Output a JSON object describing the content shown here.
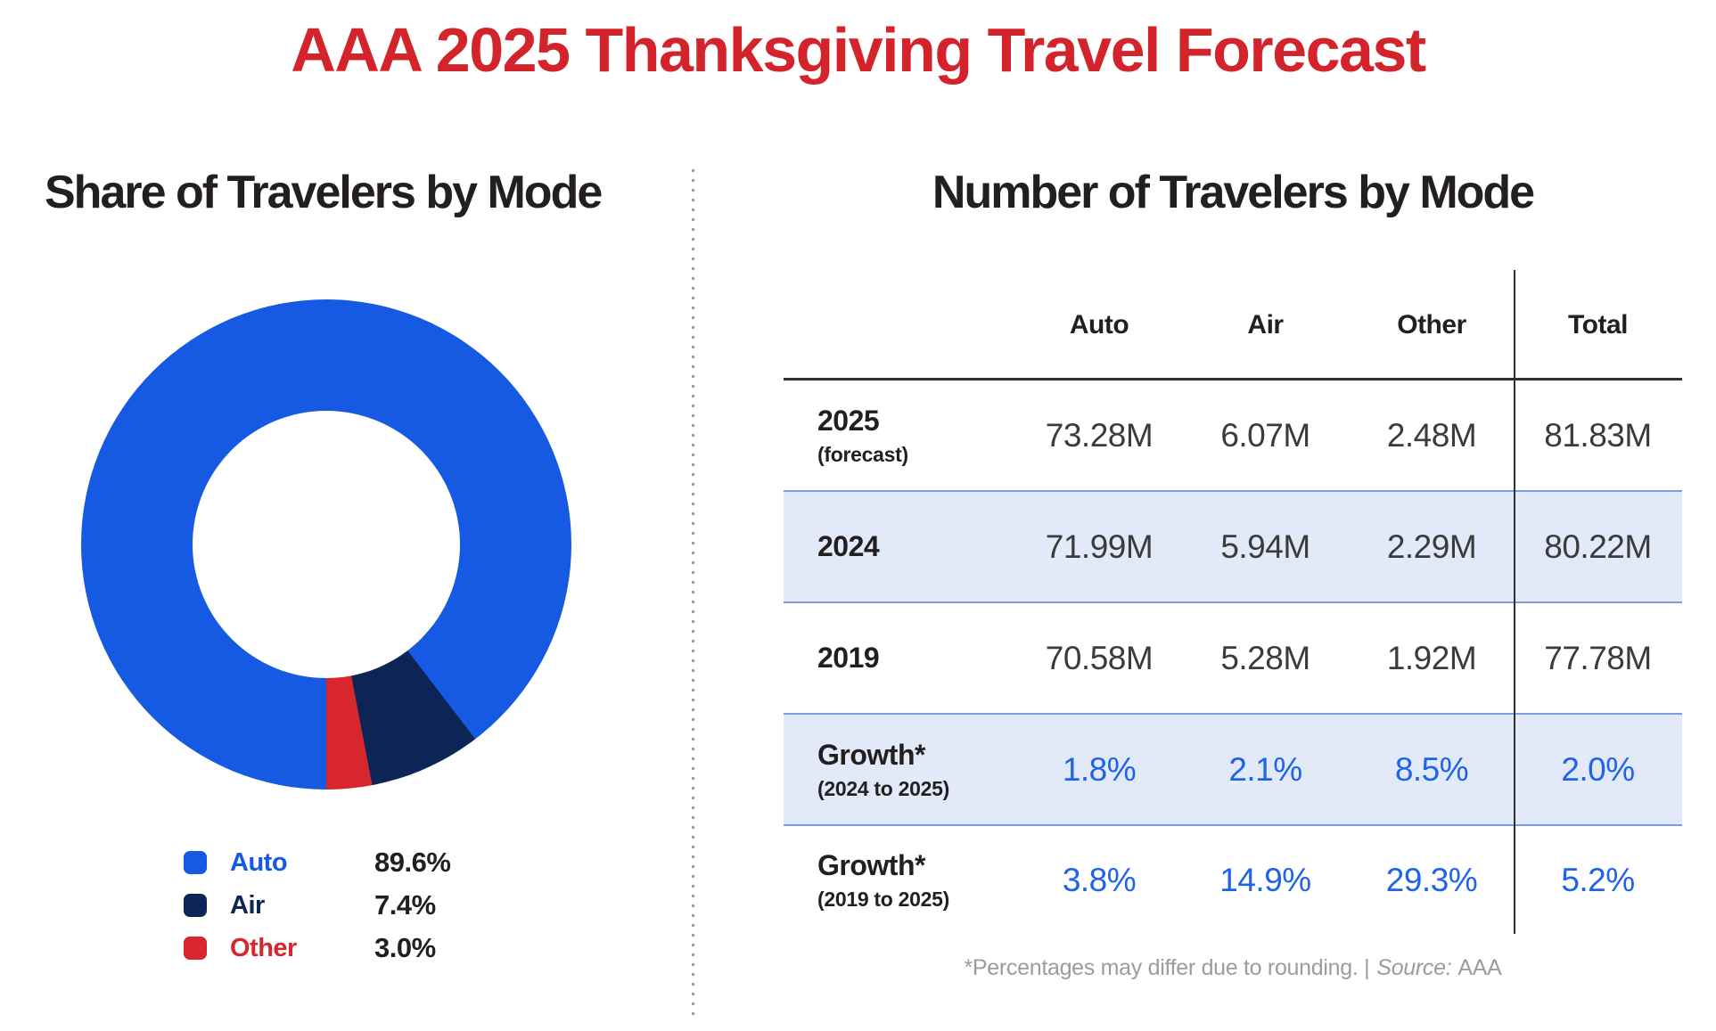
{
  "title": "AAA 2025 Thanksgiving Travel Forecast",
  "colors": {
    "title_red": "#D3242C",
    "auto_blue": "#1659E2",
    "air_navy": "#0D2456",
    "other_red": "#D7262E",
    "growth_blue": "#1E63E8",
    "band_bg": "#E2EAF9",
    "band_border": "#7F9BE5",
    "text_dark": "#231F20",
    "value_gray": "#3B3B3B",
    "line_dark": "#303030",
    "dot_gray": "#9A9A9A",
    "footnote_gray": "#9A9CA1"
  },
  "left_panel": {
    "title": "Share of Travelers by Mode"
  },
  "right_panel": {
    "title": "Number of Travelers by Mode",
    "footnote": {
      "text": "*Percentages may differ due to rounding. |",
      "source_label": "Source:",
      "source_value": "AAA"
    }
  },
  "chart_data": [
    {
      "type": "pie",
      "subtype": "donut",
      "title": "Share of Travelers by Mode",
      "categories": [
        "Auto",
        "Air",
        "Other"
      ],
      "values": [
        89.6,
        7.4,
        3.0
      ],
      "unit": "%",
      "colors": [
        "#1659E2",
        "#0D2456",
        "#D7262E"
      ],
      "start": "bottom",
      "direction": "clockwise",
      "legend_position": "below",
      "legend": [
        {
          "label": "Auto",
          "display": "89.6%"
        },
        {
          "label": "Air",
          "display": "7.4%"
        },
        {
          "label": "Other",
          "display": "3.0%"
        }
      ]
    },
    {
      "type": "table",
      "title": "Number of Travelers by Mode",
      "columns": [
        "Auto",
        "Air",
        "Other",
        "Total"
      ],
      "rows": [
        {
          "label": "2025",
          "sublabel": "(forecast)",
          "values": [
            "73.28M",
            "6.07M",
            "2.48M",
            "81.83M"
          ],
          "highlighted": false,
          "value_color": "dark"
        },
        {
          "label": "2024",
          "sublabel": "",
          "values": [
            "71.99M",
            "5.94M",
            "2.29M",
            "80.22M"
          ],
          "highlighted": true,
          "value_color": "dark"
        },
        {
          "label": "2019",
          "sublabel": "",
          "values": [
            "70.58M",
            "5.28M",
            "1.92M",
            "77.78M"
          ],
          "highlighted": false,
          "value_color": "dark"
        },
        {
          "label": "Growth*",
          "sublabel": "(2024 to 2025)",
          "values": [
            "1.8%",
            "2.1%",
            "8.5%",
            "2.0%"
          ],
          "highlighted": true,
          "value_color": "blue"
        },
        {
          "label": "Growth*",
          "sublabel": "(2019 to 2025)",
          "values": [
            "3.8%",
            "14.9%",
            "29.3%",
            "5.2%"
          ],
          "highlighted": false,
          "value_color": "blue"
        }
      ]
    }
  ]
}
